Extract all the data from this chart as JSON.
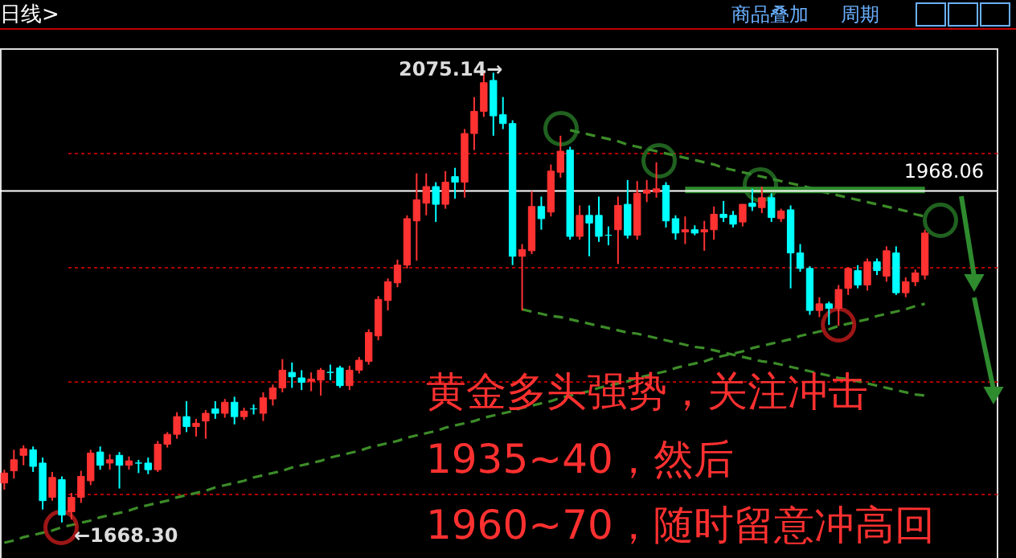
{
  "chart_data": {
    "type": "candlestick",
    "grid": "y",
    "categories": [
      null,
      null,
      null,
      null,
      null,
      null,
      null,
      null,
      null,
      null,
      null,
      null,
      null,
      null,
      null,
      null,
      null,
      null,
      null,
      null,
      null,
      null,
      null,
      null,
      null,
      null,
      null,
      null,
      null,
      null,
      null,
      null,
      null,
      null,
      null,
      null,
      null,
      null,
      null,
      null,
      null,
      null,
      null,
      null,
      null,
      null,
      null,
      null,
      null,
      null,
      null,
      null,
      null,
      null,
      null,
      null,
      null,
      null,
      null,
      null,
      null,
      null,
      null,
      null,
      null,
      null,
      null,
      null,
      null,
      null,
      null,
      null,
      null,
      null,
      null,
      null,
      null,
      null,
      null,
      null,
      null,
      null,
      null,
      null,
      null,
      null,
      null,
      null,
      null,
      null,
      null,
      null,
      null,
      null,
      null,
      null,
      null
    ],
    "yticks": [
      {
        "value": 2002,
        "label": null
      },
      {
        "value": 1899,
        "label": null
      },
      {
        "value": 1796,
        "label": null
      },
      {
        "value": 1694,
        "label": null
      }
    ],
    "ohlc": [
      [
        1704,
        1716,
        1698,
        1713
      ],
      [
        1715,
        1734,
        1708,
        1725
      ],
      [
        1729,
        1738,
        1720,
        1735
      ],
      [
        1734,
        1737,
        1714,
        1719
      ],
      [
        1722,
        1727,
        1680,
        1688
      ],
      [
        1691,
        1714,
        1688,
        1709
      ],
      [
        1707,
        1710,
        1668.3,
        1675
      ],
      [
        1678,
        1695,
        1671,
        1691
      ],
      [
        1691,
        1715,
        1686,
        1710
      ],
      [
        1706,
        1734,
        1702,
        1731
      ],
      [
        1732,
        1737,
        1716,
        1720
      ],
      [
        1722,
        1730,
        1716,
        1725
      ],
      [
        1729,
        1732,
        1699,
        1720
      ],
      [
        1720,
        1728,
        1716,
        1724
      ],
      [
        1722,
        1725,
        1713,
        1722
      ],
      [
        1722,
        1727,
        1712,
        1716
      ],
      [
        1716,
        1742,
        1714,
        1739
      ],
      [
        1739,
        1750,
        1736,
        1748
      ],
      [
        1748,
        1768,
        1744,
        1764
      ],
      [
        1764,
        1778,
        1750,
        1755
      ],
      [
        1755,
        1762,
        1746,
        1758
      ],
      [
        1760,
        1770,
        1744,
        1767
      ],
      [
        1771,
        1778,
        1762,
        1767
      ],
      [
        1767,
        1780,
        1763,
        1777
      ],
      [
        1777,
        1782,
        1757,
        1764
      ],
      [
        1764,
        1772,
        1761,
        1769
      ],
      [
        1771,
        1775,
        1766,
        1771
      ],
      [
        1767,
        1786,
        1760,
        1781
      ],
      [
        1780,
        1793,
        1774,
        1790
      ],
      [
        1790,
        1816,
        1786,
        1806
      ],
      [
        1804,
        1813,
        1790,
        1800
      ],
      [
        1799,
        1806,
        1788,
        1795
      ],
      [
        1796,
        1804,
        1787,
        1798
      ],
      [
        1797,
        1808,
        1783,
        1806
      ],
      [
        1804,
        1811,
        1797,
        1804
      ],
      [
        1808,
        1810,
        1790,
        1792
      ],
      [
        1792,
        1810,
        1788,
        1806
      ],
      [
        1806,
        1818,
        1803,
        1815
      ],
      [
        1814,
        1843,
        1811,
        1840
      ],
      [
        1837,
        1873,
        1833,
        1870
      ],
      [
        1869,
        1889,
        1860,
        1886
      ],
      [
        1885,
        1906,
        1881,
        1901
      ],
      [
        1901,
        1946,
        1898,
        1943
      ],
      [
        1941,
        1984,
        1905,
        1960
      ],
      [
        1957,
        1984,
        1946,
        1972
      ],
      [
        1972,
        1976,
        1940,
        1956
      ],
      [
        1956,
        1986,
        1952,
        1976
      ],
      [
        1981,
        1989,
        1961,
        1976
      ],
      [
        1976,
        2024,
        1962,
        2020
      ],
      [
        2020,
        2053,
        2005,
        2040
      ],
      [
        2040,
        2075.14,
        2035,
        2066
      ],
      [
        2068,
        2075,
        2018,
        2036
      ],
      [
        2037,
        2053,
        2024,
        2029
      ],
      [
        2029,
        2032,
        1901,
        1909
      ],
      [
        1909,
        1920,
        1860,
        1915
      ],
      [
        1914,
        1968,
        1911,
        1954
      ],
      [
        1954,
        1963,
        1933,
        1943
      ],
      [
        1949,
        1992,
        1945,
        1986
      ],
      [
        1985,
        2018,
        1980,
        2004
      ],
      [
        2005,
        2008,
        1924,
        1927
      ],
      [
        1927,
        1955,
        1924,
        1946
      ],
      [
        1946,
        1955,
        1909,
        1939
      ],
      [
        1946,
        1963,
        1922,
        1927
      ],
      [
        1928,
        1936,
        1919,
        1928
      ],
      [
        1933,
        1963,
        1902,
        1955
      ],
      [
        1956,
        1978,
        1925,
        1928
      ],
      [
        1928,
        1977,
        1924,
        1966
      ],
      [
        1966,
        1978,
        1958,
        1969
      ],
      [
        1967,
        1994,
        1962,
        1970
      ],
      [
        1973,
        1976,
        1935,
        1941
      ],
      [
        1943,
        1946,
        1924,
        1930
      ],
      [
        1931,
        1945,
        1920,
        1933
      ],
      [
        1933,
        1937,
        1928,
        1930
      ],
      [
        1931,
        1941,
        1914,
        1933
      ],
      [
        1933,
        1954,
        1924,
        1947
      ],
      [
        1947,
        1959,
        1940,
        1944
      ],
      [
        1946,
        1950,
        1935,
        1938
      ],
      [
        1940,
        1956,
        1936,
        1956
      ],
      [
        1957,
        1970,
        1950,
        1954
      ],
      [
        1953,
        1972,
        1948,
        1962
      ],
      [
        1962,
        1966,
        1940,
        1944
      ],
      [
        1943,
        1952,
        1940,
        1950
      ],
      [
        1951,
        1955,
        1880,
        1912
      ],
      [
        1912,
        1920,
        1895,
        1898
      ],
      [
        1898,
        1900,
        1856,
        1860
      ],
      [
        1860,
        1872,
        1854,
        1866
      ],
      [
        1866,
        1868,
        1847,
        1862
      ],
      [
        1862,
        1883,
        1846,
        1879
      ],
      [
        1880,
        1899,
        1874,
        1898
      ],
      [
        1896,
        1901,
        1880,
        1883
      ],
      [
        1883,
        1907,
        1878,
        1904
      ],
      [
        1904,
        1907,
        1892,
        1896
      ],
      [
        1891,
        1918,
        1886,
        1914
      ],
      [
        1912,
        1918,
        1874,
        1876
      ],
      [
        1876,
        1890,
        1872,
        1886
      ],
      [
        1886,
        1897,
        1882,
        1894
      ],
      [
        1892,
        1933,
        1888,
        1930
      ]
    ],
    "colors": [
      "#ff3232",
      "#ff3232",
      "#ff3232",
      "#00ffff",
      "#00ffff",
      "#ff3232",
      "#00ffff",
      "#ff3232",
      "#ff3232",
      "#ff3232",
      "#00ffff",
      "#ff3232",
      "#00ffff",
      "#ff3232",
      "#00ffff",
      "#00ffff",
      "#ff3232",
      "#ff3232",
      "#ff3232",
      "#00ffff",
      "#ff3232",
      "#ff3232",
      "#00ffff",
      "#ff3232",
      "#00ffff",
      "#ff3232",
      "#00ffff",
      "#ff3232",
      "#ff3232",
      "#ff3232",
      "#00ffff",
      "#00ffff",
      "#ff3232",
      "#ff3232",
      "#00ffff",
      "#00ffff",
      "#ff3232",
      "#ff3232",
      "#ff3232",
      "#ff3232",
      "#ff3232",
      "#ff3232",
      "#ff3232",
      "#ff3232",
      "#ff3232",
      "#00ffff",
      "#ff3232",
      "#00ffff",
      "#ff3232",
      "#ff3232",
      "#ff3232",
      "#00ffff",
      "#00ffff",
      "#00ffff",
      "#ff3232",
      "#ff3232",
      "#00ffff",
      "#ff3232",
      "#ff3232",
      "#00ffff",
      "#ff3232",
      "#00ffff",
      "#00ffff",
      "#00ffff",
      "#ff3232",
      "#00ffff",
      "#ff3232",
      "#ff3232",
      "#ff3232",
      "#00ffff",
      "#00ffff",
      "#ff3232",
      "#00ffff",
      "#ff3232",
      "#ff3232",
      "#00ffff",
      "#00ffff",
      "#ff3232",
      "#00ffff",
      "#ff3232",
      "#00ffff",
      "#ff3232",
      "#00ffff",
      "#00ffff",
      "#00ffff",
      "#ff3232",
      "#00ffff",
      "#ff3232",
      "#ff3232",
      "#00ffff",
      "#ff3232",
      "#00ffff",
      "#ff3232",
      "#00ffff",
      "#ff3232",
      "#ff3232",
      "#ff3232"
    ],
    "series": [
      {
        "type": "line",
        "color": "#3c8c28",
        "line_style": "dashed",
        "values": [
          null,
          null,
          null,
          null,
          null,
          null,
          null,
          null,
          null,
          null,
          null,
          null,
          null,
          null,
          null,
          null,
          null,
          null,
          null,
          null,
          null,
          null,
          null,
          null,
          null,
          null,
          null,
          null,
          null,
          null,
          null,
          null,
          null,
          null,
          null,
          null,
          null,
          null,
          null,
          null,
          null,
          null,
          null,
          null,
          null,
          null,
          null,
          null,
          null,
          null,
          null,
          null,
          null,
          null,
          null,
          null,
          null,
          null,
          null,
          2023,
          2021,
          2019,
          2017,
          2015,
          2013,
          2010,
          2008,
          2006,
          2004,
          2002,
          2000,
          1998,
          1996,
          1994,
          1992,
          1989,
          1987,
          1985,
          1983,
          1981,
          1979,
          1977,
          1975,
          1973,
          1971,
          1968,
          1966,
          1964,
          1962,
          1960,
          1958,
          1956,
          1954,
          1952,
          1950,
          1947,
          1945
        ]
      },
      {
        "type": "line",
        "color": "#3c8c28",
        "line_style": "dashed",
        "values": [
          null,
          null,
          null,
          null,
          null,
          null,
          null,
          null,
          null,
          null,
          null,
          null,
          null,
          null,
          null,
          null,
          null,
          null,
          null,
          null,
          null,
          null,
          null,
          null,
          null,
          null,
          null,
          null,
          null,
          null,
          null,
          null,
          null,
          null,
          null,
          null,
          null,
          null,
          null,
          null,
          null,
          null,
          null,
          null,
          null,
          null,
          null,
          null,
          null,
          null,
          null,
          null,
          null,
          null,
          1861,
          1859,
          1857,
          1855,
          1854,
          1852,
          1850,
          1848,
          1846,
          1844,
          1842,
          1840,
          1839,
          1837,
          1835,
          1833,
          1831,
          1829,
          1827,
          1826,
          1824,
          1822,
          1820,
          1818,
          1816,
          1814,
          1813,
          1811,
          1809,
          1807,
          1805,
          1803,
          1801,
          1799,
          1798,
          1796,
          1794,
          1792,
          1790,
          1788,
          1786,
          1784,
          1783
        ]
      },
      {
        "type": "line",
        "color": "#3c8c28",
        "line_style": "dashed",
        "values": [
          1650,
          1652,
          1655,
          1657,
          1659,
          1661,
          1664,
          1666,
          1668,
          1670,
          1673,
          1675,
          1677,
          1679,
          1682,
          1684,
          1686,
          1688,
          1691,
          1693,
          1695,
          1697,
          1700,
          1702,
          1704,
          1706,
          1709,
          1711,
          1713,
          1715,
          1718,
          1720,
          1722,
          1724,
          1727,
          1729,
          1731,
          1733,
          1736,
          1738,
          1740,
          1742,
          1745,
          1747,
          1749,
          1751,
          1754,
          1756,
          1758,
          1760,
          1763,
          1765,
          1767,
          1769,
          1772,
          1774,
          1776,
          1778,
          1781,
          1783,
          1785,
          1787,
          1790,
          1792,
          1794,
          1796,
          1799,
          1801,
          1803,
          1805,
          1808,
          1810,
          1812,
          1814,
          1817,
          1819,
          1821,
          1823,
          1826,
          1828,
          1830,
          1832,
          1834,
          1837,
          1839,
          1841,
          1843,
          1846,
          1848,
          1850,
          1852,
          1855,
          1857,
          1859,
          1861,
          1864,
          1866
        ]
      },
      {
        "type": "line",
        "color": "#2e8b2e",
        "line_style": "solid",
        "values": [
          null,
          null,
          null,
          null,
          null,
          null,
          null,
          null,
          null,
          null,
          null,
          null,
          null,
          null,
          null,
          null,
          null,
          null,
          null,
          null,
          null,
          null,
          null,
          null,
          null,
          null,
          null,
          null,
          null,
          null,
          null,
          null,
          null,
          null,
          null,
          null,
          null,
          null,
          null,
          null,
          null,
          null,
          null,
          null,
          null,
          null,
          null,
          null,
          null,
          null,
          null,
          null,
          null,
          null,
          null,
          null,
          null,
          null,
          null,
          null,
          null,
          null,
          null,
          null,
          null,
          null,
          null,
          null,
          null,
          null,
          null,
          1969,
          1969,
          1969,
          1969,
          1969,
          1969,
          1969,
          1969,
          1969,
          1969,
          1969,
          1969,
          1969,
          1969,
          1969,
          1969,
          1969,
          1969,
          1969,
          1969,
          1969,
          1969,
          1969,
          1969,
          1969,
          1969
        ]
      },
      {
        "type": "scatter",
        "marker": "circle",
        "color": "#e02020",
        "values": [
          null,
          null,
          null,
          null,
          null,
          null,
          null,
          null,
          null,
          null,
          null,
          null,
          null,
          null,
          null,
          null,
          null,
          null,
          null,
          null,
          null,
          null,
          null,
          null,
          null,
          null,
          null,
          null,
          null,
          null,
          null,
          null,
          null,
          null,
          null,
          null,
          null,
          null,
          null,
          null,
          null,
          null,
          null,
          null,
          null,
          null,
          null,
          null,
          null,
          null,
          null,
          null,
          null,
          null,
          null,
          null,
          null,
          null,
          null,
          null,
          null,
          null,
          null,
          null,
          null,
          null,
          null,
          null,
          null,
          null,
          null,
          null,
          null,
          null,
          null,
          null,
          null,
          null,
          null,
          null,
          null,
          null,
          null,
          null,
          null,
          null,
          null,
          1847,
          null,
          null,
          null,
          null,
          null,
          null,
          null,
          null,
          null
        ]
      }
    ],
    "ref_lines": [
      {
        "axis": "y",
        "value": 1968.06,
        "label": "1968.06",
        "color": "#ffffff",
        "line_style": "solid"
      }
    ],
    "annotations": [
      "日线>",
      "商品叠加",
      "周期",
      "黄金多头强势，关注冲击",
      "1935~40，然后",
      "1960~70，随时留意冲高回",
      "2075.14→",
      "←1668.30"
    ]
  }
}
